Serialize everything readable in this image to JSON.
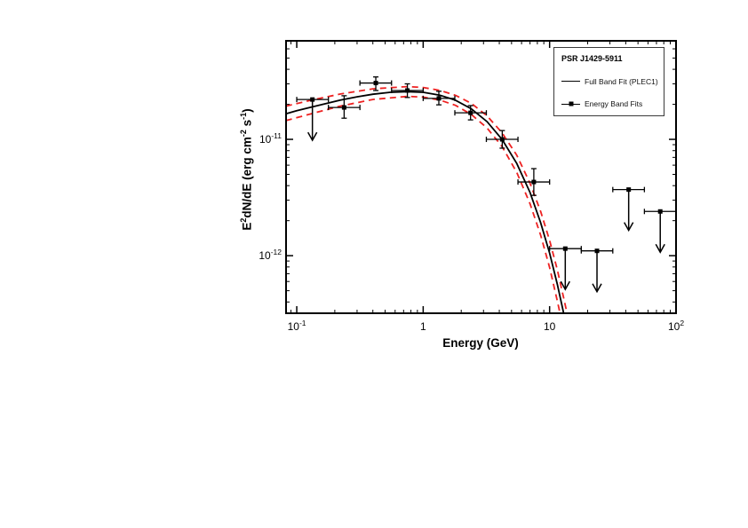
{
  "chart_data": {
    "type": "scatter",
    "title": "",
    "xlabel": "Energy (GeV)",
    "ylabel": "E^2 dN/dE (erg cm^-2 s^-1)",
    "x_scale": "log",
    "y_scale": "log",
    "xlim": [
      0.0823,
      100
    ],
    "ylim": [
      3.2e-13,
      7.03e-11
    ],
    "grid": false,
    "x_axis": {
      "label": "Energy (GeV)",
      "ticks": [
        {
          "v": 0.1,
          "base": "10",
          "exp": "-1"
        },
        {
          "v": 1,
          "base": "1",
          "exp": ""
        },
        {
          "v": 10,
          "base": "10",
          "exp": ""
        },
        {
          "v": 100,
          "base": "10",
          "exp": "2"
        }
      ]
    },
    "y_axis": {
      "label_parts": [
        {
          "t": "E",
          "sup": false
        },
        {
          "t": "2",
          "sup": true
        },
        {
          "t": "dN/dE (erg cm",
          "sup": false
        },
        {
          "t": "-2",
          "sup": true
        },
        {
          "t": " s",
          "sup": false
        },
        {
          "t": "-1",
          "sup": true
        },
        {
          "t": ")",
          "sup": false
        }
      ],
      "ticks": [
        {
          "v": 1e-11,
          "base": "10",
          "exp": "-11"
        },
        {
          "v": 1e-12,
          "base": "10",
          "exp": "-12"
        }
      ]
    },
    "legend": {
      "position": "top-right",
      "title": "PSR J1429-5911",
      "entries": [
        {
          "label": "Full Band Fit (PLEC1)",
          "marker": "line"
        },
        {
          "label": "Energy Band Fits",
          "marker": "line-square"
        }
      ]
    },
    "colors": {
      "fit_line": "#000000",
      "uncertainty_band": "#ee2222",
      "points": "#000000",
      "frame": "#000000"
    },
    "series": [
      {
        "name": "Energy Band Fits",
        "type": "points",
        "color": "#000000",
        "points": [
          {
            "e": 0.133,
            "e_lo": 0.1,
            "e_hi": 0.178,
            "f": 2.2e-11,
            "upper_limit": true
          },
          {
            "e": 0.237,
            "e_lo": 0.178,
            "e_hi": 0.316,
            "f": 1.88e-11,
            "f_up": 4.9e-12,
            "f_dn": 3.6e-12
          },
          {
            "e": 0.422,
            "e_lo": 0.316,
            "e_hi": 0.562,
            "f": 3.05e-11,
            "f_up": 3.9e-12,
            "f_dn": 4.2e-12
          },
          {
            "e": 0.75,
            "e_lo": 0.562,
            "e_hi": 1.0,
            "f": 2.63e-11,
            "f_up": 3.7e-12,
            "f_dn": 3.4e-12
          },
          {
            "e": 1.33,
            "e_lo": 1.0,
            "e_hi": 1.78,
            "f": 2.25e-11,
            "f_up": 3.4e-12,
            "f_dn": 2.7e-12
          },
          {
            "e": 2.37,
            "e_lo": 1.78,
            "e_hi": 3.16,
            "f": 1.69e-11,
            "f_up": 2.6e-12,
            "f_dn": 2.2e-12
          },
          {
            "e": 4.22,
            "e_lo": 3.16,
            "e_hi": 5.62,
            "f": 1e-11,
            "f_up": 1.9e-12,
            "f_dn": 1.6e-12
          },
          {
            "e": 7.5,
            "e_lo": 5.62,
            "e_hi": 10.0,
            "f": 4.3e-12,
            "f_up": 1.3e-12,
            "f_dn": 1e-12
          },
          {
            "e": 13.3,
            "e_lo": 10.0,
            "e_hi": 17.8,
            "f": 1.15e-12,
            "upper_limit": true
          },
          {
            "e": 23.7,
            "e_lo": 17.8,
            "e_hi": 31.6,
            "f": 1.1e-12,
            "upper_limit": true
          },
          {
            "e": 42.2,
            "e_lo": 31.6,
            "e_hi": 56.2,
            "f": 3.7e-12,
            "upper_limit": true
          },
          {
            "e": 75.0,
            "e_lo": 56.2,
            "e_hi": 100.0,
            "f": 2.4e-12,
            "upper_limit": true
          }
        ]
      },
      {
        "name": "Full Band Fit (PLEC1)",
        "type": "line",
        "dash": false,
        "color": "#000000",
        "x": [
          0.082,
          0.1,
          0.13,
          0.17,
          0.22,
          0.3,
          0.4,
          0.55,
          0.75,
          1.0,
          1.35,
          1.8,
          2.4,
          3.2,
          4.2,
          5.5,
          7.0,
          8.5,
          10.0,
          11.5,
          13.0,
          13.5
        ],
        "y": [
          1.66e-11,
          1.76e-11,
          1.89e-11,
          2.03e-11,
          2.17e-11,
          2.32e-11,
          2.44e-11,
          2.54e-11,
          2.57e-11,
          2.54e-11,
          2.4e-11,
          2.17e-11,
          1.83e-11,
          1.42e-11,
          1e-11,
          6.2e-12,
          3.5e-12,
          1.92e-12,
          1.05e-12,
          5.7e-13,
          3.1e-13,
          2.5e-13
        ]
      },
      {
        "name": "Fit uncertainty band (upper, dashed)",
        "type": "line",
        "dash": true,
        "color": "#ee2222",
        "x": [
          0.082,
          0.13,
          0.22,
          0.4,
          0.75,
          1.0,
          1.35,
          1.8,
          2.4,
          3.2,
          4.2,
          5.5,
          7.0,
          8.5,
          10.0,
          11.5,
          13.0,
          14.0
        ],
        "y": [
          1.93e-11,
          2.17e-11,
          2.45e-11,
          2.72e-11,
          2.84e-11,
          2.79e-11,
          2.64e-11,
          2.39e-11,
          2.04e-11,
          1.59e-11,
          1.14e-11,
          7.3e-12,
          4.2e-12,
          2.4e-12,
          1.35e-12,
          7.6e-13,
          4.2e-13,
          2.9e-13
        ]
      },
      {
        "name": "Fit uncertainty band (lower, dashed)",
        "type": "line",
        "dash": true,
        "color": "#ee2222",
        "x": [
          0.082,
          0.13,
          0.22,
          0.4,
          0.75,
          1.0,
          1.35,
          1.8,
          2.4,
          3.2,
          4.2,
          5.5,
          7.0,
          8.5,
          10.0,
          11.5,
          12.5
        ],
        "y": [
          1.45e-11,
          1.66e-11,
          1.93e-11,
          2.2e-11,
          2.34e-11,
          2.31e-11,
          2.18e-11,
          1.96e-11,
          1.64e-11,
          1.25e-11,
          8.7e-12,
          5.2e-12,
          2.8e-12,
          1.5e-12,
          7.9e-13,
          4.1e-13,
          2.7e-13
        ]
      }
    ]
  }
}
